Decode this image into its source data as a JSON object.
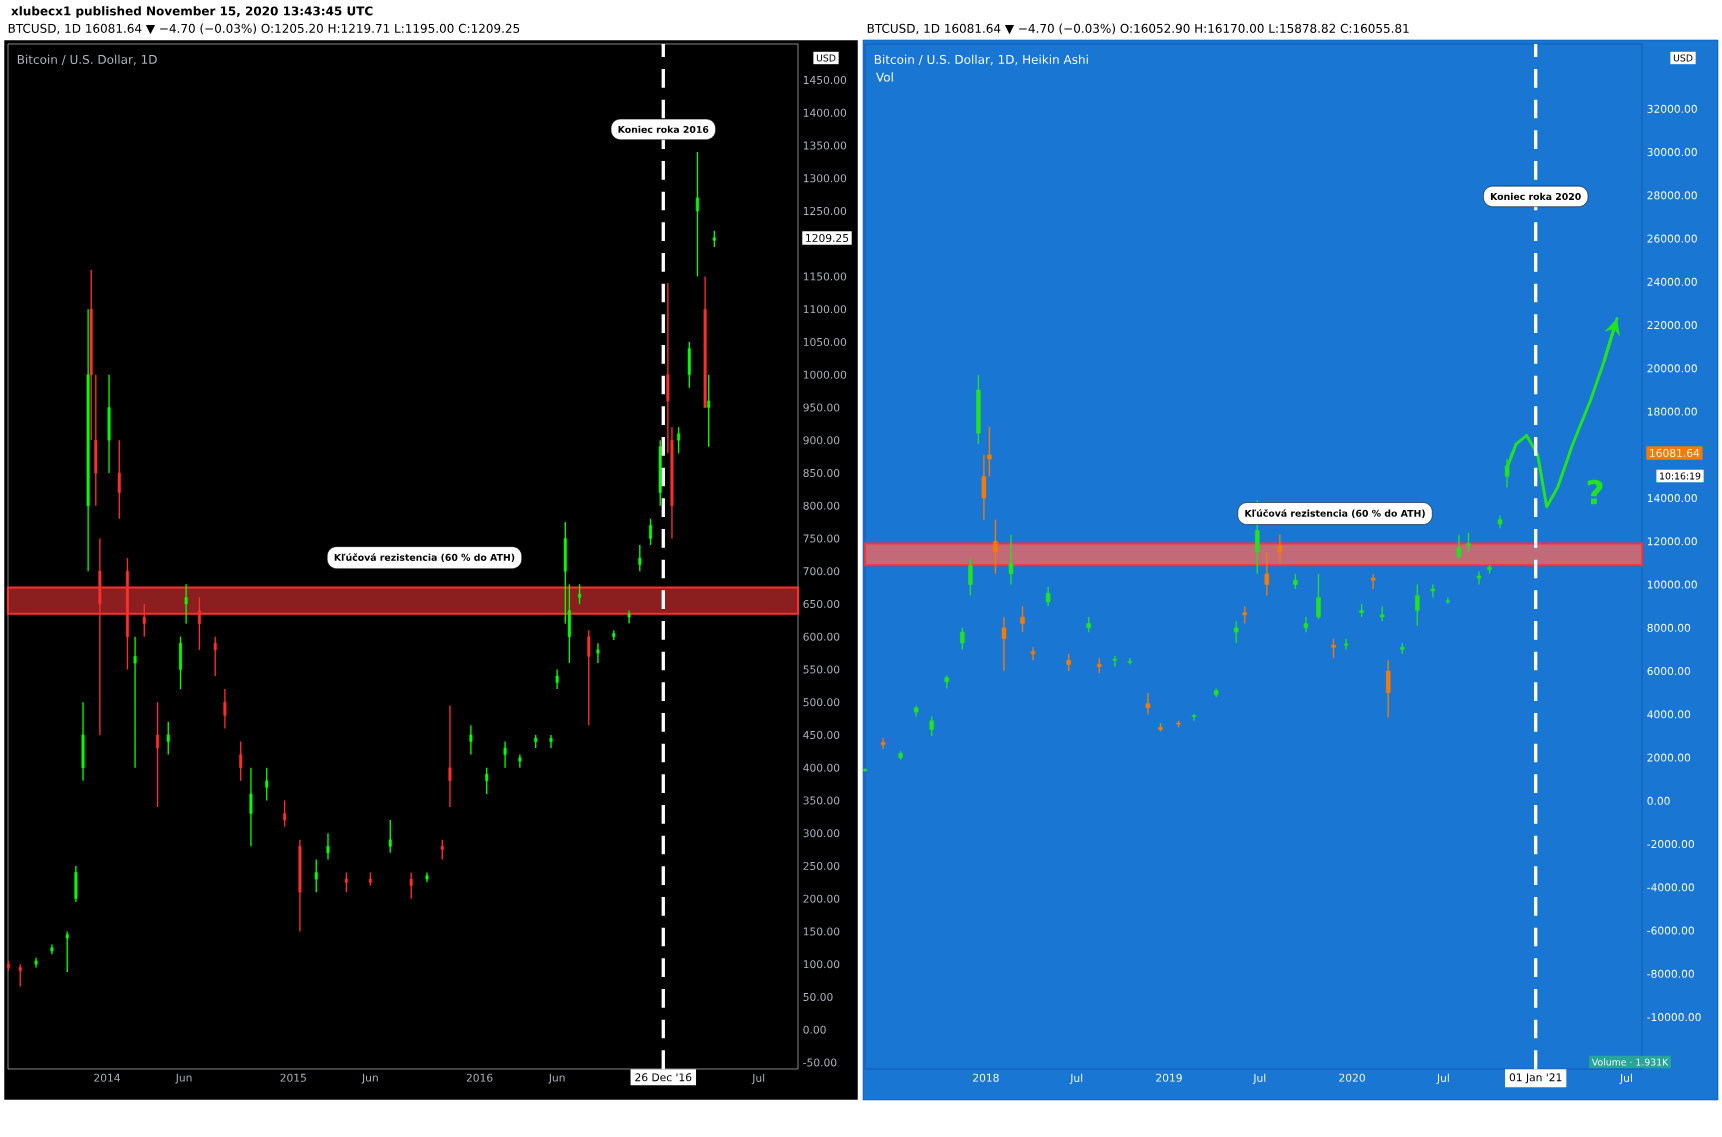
{
  "chart_data": [
    {
      "type": "candlestick",
      "title": "Bitcoin / U.S. Dollar, 1D",
      "subtitle": "BTCUSD, 1D  16081.64 ▼ −4.70 (−0.03%)  O:1205.20 H:1219.71 L:1195.00 C:1209.25",
      "xlim": [
        "2013-06-21",
        "2017-09-16"
      ],
      "ylim": [
        -60,
        1505
      ],
      "xticks": [
        {
          "value": "2014-01-01",
          "label": "2014"
        },
        {
          "value": "2014-06-01",
          "label": "Jun"
        },
        {
          "value": "2015-01-01",
          "label": "2015"
        },
        {
          "value": "2015-06-01",
          "label": "Jun"
        },
        {
          "value": "2016-01-01",
          "label": "2016"
        },
        {
          "value": "2016-06-01",
          "label": "Jun"
        },
        {
          "value": "2017-07-01",
          "label": "Jul"
        }
      ],
      "yticks": [
        {
          "value": -50,
          "label": "-50.00"
        },
        {
          "value": 0,
          "label": "0.00"
        },
        {
          "value": 50,
          "label": "50.00"
        },
        {
          "value": 100,
          "label": "100.00"
        },
        {
          "value": 150,
          "label": "150.00"
        },
        {
          "value": 200,
          "label": "200.00"
        },
        {
          "value": 250,
          "label": "250.00"
        },
        {
          "value": 300,
          "label": "300.00"
        },
        {
          "value": 350,
          "label": "350.00"
        },
        {
          "value": 400,
          "label": "400.00"
        },
        {
          "value": 450,
          "label": "450.00"
        },
        {
          "value": 500,
          "label": "500.00"
        },
        {
          "value": 550,
          "label": "550.00"
        },
        {
          "value": 600,
          "label": "600.00"
        },
        {
          "value": 650,
          "label": "650.00"
        },
        {
          "value": 700,
          "label": "700.00"
        },
        {
          "value": 750,
          "label": "750.00"
        },
        {
          "value": 800,
          "label": "800.00"
        },
        {
          "value": 850,
          "label": "850.00"
        },
        {
          "value": 900,
          "label": "900.00"
        },
        {
          "value": 950,
          "label": "950.00"
        },
        {
          "value": 1000,
          "label": "1000.00"
        },
        {
          "value": 1050,
          "label": "1050.00"
        },
        {
          "value": 1100,
          "label": "1100.00"
        },
        {
          "value": 1150,
          "label": "1150.00"
        },
        {
          "value": 1250,
          "label": "1250.00"
        },
        {
          "value": 1300,
          "label": "1300.00"
        },
        {
          "value": 1350,
          "label": "1350.00"
        },
        {
          "value": 1400,
          "label": "1400.00"
        },
        {
          "value": 1450,
          "label": "1450.00"
        }
      ],
      "series": [
        {
          "x": [
            "2013-06-22",
            "2013-07-15",
            "2013-08-15",
            "2013-09-15",
            "2013-10-15",
            "2013-11-01",
            "2013-11-15",
            "2013-11-25",
            "2013-12-01",
            "2013-12-10",
            "2013-12-18",
            "2014-01-05",
            "2014-01-25",
            "2014-02-10",
            "2014-02-25",
            "2014-03-15",
            "2014-04-10",
            "2014-05-01",
            "2014-05-25",
            "2014-06-05",
            "2014-07-01",
            "2014-08-01",
            "2014-08-20",
            "2014-09-20",
            "2014-10-10",
            "2014-11-10",
            "2014-12-15",
            "2015-01-14",
            "2015-02-15",
            "2015-03-10",
            "2015-04-15",
            "2015-06-01",
            "2015-07-10",
            "2015-08-20",
            "2015-09-20",
            "2015-10-20",
            "2015-11-04",
            "2015-12-15",
            "2016-01-15",
            "2016-02-20",
            "2016-03-20",
            "2016-04-20",
            "2016-05-20",
            "2016-06-01",
            "2016-06-17",
            "2016-06-25",
            "2016-07-15",
            "2016-08-02",
            "2016-08-20",
            "2016-09-20",
            "2016-10-20",
            "2016-11-10",
            "2016-12-01",
            "2016-12-20",
            "2017-01-04",
            "2017-01-12",
            "2017-01-25",
            "2017-02-15",
            "2017-03-03",
            "2017-03-18",
            "2017-03-25",
            "2017-04-05"
          ],
          "ohlc": [
            [
              100,
              105,
              90,
              95
            ],
            [
              95,
              100,
              66,
              90
            ],
            [
              100,
              110,
              95,
              105
            ],
            [
              120,
              130,
              115,
              125
            ],
            [
              140,
              150,
              88,
              145
            ],
            [
              200,
              250,
              195,
              240
            ],
            [
              400,
              500,
              380,
              450
            ],
            [
              800,
              1100,
              700,
              1000
            ],
            [
              1100,
              1160,
              900,
              1000
            ],
            [
              900,
              1000,
              800,
              850
            ],
            [
              700,
              750,
              450,
              650
            ],
            [
              900,
              1000,
              850,
              950
            ],
            [
              850,
              900,
              780,
              820
            ],
            [
              700,
              720,
              550,
              600
            ],
            [
              560,
              600,
              400,
              570
            ],
            [
              630,
              650,
              600,
              620
            ],
            [
              450,
              500,
              340,
              430
            ],
            [
              440,
              470,
              420,
              450
            ],
            [
              550,
              600,
              520,
              590
            ],
            [
              650,
              680,
              620,
              660
            ],
            [
              640,
              660,
              580,
              620
            ],
            [
              590,
              600,
              540,
              580
            ],
            [
              500,
              520,
              460,
              480
            ],
            [
              420,
              440,
              380,
              400
            ],
            [
              330,
              400,
              280,
              360
            ],
            [
              370,
              400,
              350,
              380
            ],
            [
              330,
              350,
              310,
              320
            ],
            [
              280,
              290,
              150,
              210
            ],
            [
              230,
              260,
              210,
              240
            ],
            [
              270,
              300,
              260,
              280
            ],
            [
              230,
              240,
              210,
              225
            ],
            [
              230,
              240,
              220,
              225
            ],
            [
              280,
              320,
              270,
              290
            ],
            [
              230,
              240,
              200,
              220
            ],
            [
              230,
              240,
              225,
              235
            ],
            [
              280,
              290,
              260,
              275
            ],
            [
              400,
              495,
              340,
              380
            ],
            [
              440,
              465,
              420,
              450
            ],
            [
              380,
              400,
              360,
              390
            ],
            [
              420,
              440,
              400,
              430
            ],
            [
              410,
              420,
              400,
              415
            ],
            [
              440,
              450,
              430,
              445
            ],
            [
              440,
              450,
              430,
              445
            ],
            [
              530,
              550,
              520,
              540
            ],
            [
              700,
              775,
              620,
              750
            ],
            [
              600,
              680,
              560,
              640
            ],
            [
              660,
              680,
              650,
              665
            ],
            [
              600,
              610,
              465,
              570
            ],
            [
              575,
              590,
              560,
              580
            ],
            [
              600,
              610,
              595,
              605
            ],
            [
              630,
              640,
              620,
              635
            ],
            [
              710,
              740,
              700,
              720
            ],
            [
              750,
              780,
              740,
              770
            ],
            [
              820,
              900,
              800,
              890
            ],
            [
              1000,
              1140,
              880,
              960
            ],
            [
              900,
              920,
              750,
              800
            ],
            [
              900,
              920,
              880,
              910
            ],
            [
              1000,
              1050,
              980,
              1040
            ],
            [
              1250,
              1340,
              1150,
              1270
            ],
            [
              1100,
              1150,
              950,
              950
            ],
            [
              950,
              1000,
              890,
              960
            ],
            [
              1205.2,
              1219.71,
              1195.0,
              1209.25
            ]
          ],
          "colors": [
            "#ff2f2f",
            "#ff2f2f",
            "#00ff00",
            "#00ff00",
            "#00ff00",
            "#00ff00",
            "#00ff00",
            "#00ff00",
            "#ff2f2f",
            "#ff2f2f",
            "#ff2f2f",
            "#00ff00",
            "#ff2f2f",
            "#ff2f2f",
            "#00ff00",
            "#ff2f2f",
            "#ff2f2f",
            "#00ff00",
            "#00ff00",
            "#00ff00",
            "#ff2f2f",
            "#ff2f2f",
            "#ff2f2f",
            "#ff2f2f",
            "#00ff00",
            "#00ff00",
            "#ff2f2f",
            "#ff2f2f",
            "#00ff00",
            "#00ff00",
            "#ff2f2f",
            "#ff2f2f",
            "#00ff00",
            "#ff2f2f",
            "#00ff00",
            "#ff2f2f",
            "#ff2f2f",
            "#00ff00",
            "#00ff00",
            "#00ff00",
            "#00ff00",
            "#00ff00",
            "#00ff00",
            "#00ff00",
            "#00ff00",
            "#00ff00",
            "#00ff00",
            "#ff2f2f",
            "#00ff00",
            "#00ff00",
            "#00ff00",
            "#00ff00",
            "#00ff00",
            "#00ff00",
            "#ff2f2f",
            "#ff2f2f",
            "#00ff00",
            "#00ff00",
            "#00ff00",
            "#ff2f2f",
            "#00ff00",
            "#00ff00"
          ]
        }
      ],
      "ref_lines": [
        {
          "axis": "x",
          "value": "2016-12-26",
          "label": "26 Dec '16",
          "color": "#ffffff",
          "line_style": "dashed"
        }
      ],
      "bands": [
        {
          "axis": "y",
          "from": 635,
          "to": 675,
          "color": "#8b1e1e"
        }
      ],
      "annotations": [
        "xlubecx1 published November 15, 2020 13:43:45 UTC",
        "USD",
        {
          "text": "Koniec roka 2016",
          "x": "2016-12-26",
          "y": 1330
        },
        {
          "text": "Kľúčová rezistencia (60 % do ATH)",
          "x": "2015-09-15",
          "y": 675
        },
        "1209.25"
      ]
    },
    {
      "type": "candlestick",
      "title": "Bitcoin / U.S. Dollar, 1D, Heikin Ashi",
      "subtitle": "BTCUSD, 1D  16081.64 ▼ −4.70 (−0.03%)  O:16052.90 H:16170.00 L:15878.82 C:16055.81",
      "xlim": [
        "2017-05-05",
        "2021-08-01"
      ],
      "ylim": [
        -12400,
        35000
      ],
      "xticks": [
        {
          "value": "2018-01-01",
          "label": "2018"
        },
        {
          "value": "2018-07-01",
          "label": "Jul"
        },
        {
          "value": "2019-01-01",
          "label": "2019"
        },
        {
          "value": "2019-07-01",
          "label": "Jul"
        },
        {
          "value": "2020-01-01",
          "label": "2020"
        },
        {
          "value": "2020-07-01",
          "label": "Jul"
        },
        {
          "value": "2021-07-01",
          "label": "Jul"
        }
      ],
      "yticks": [
        {
          "value": -10000,
          "label": "-10000.00"
        },
        {
          "value": -8000,
          "label": "-8000.00"
        },
        {
          "value": -6000,
          "label": "-6000.00"
        },
        {
          "value": -4000,
          "label": "-4000.00"
        },
        {
          "value": -2000,
          "label": "-2000.00"
        },
        {
          "value": 0,
          "label": "0.00"
        },
        {
          "value": 2000,
          "label": "2000.00"
        },
        {
          "value": 4000,
          "label": "4000.00"
        },
        {
          "value": 6000,
          "label": "6000.00"
        },
        {
          "value": 8000,
          "label": "8000.00"
        },
        {
          "value": 10000,
          "label": "10000.00"
        },
        {
          "value": 12000,
          "label": "12000.00"
        },
        {
          "value": 14000,
          "label": "14000.00"
        },
        {
          "value": 18000,
          "label": "18000.00"
        },
        {
          "value": 20000,
          "label": "20000.00"
        },
        {
          "value": 22000,
          "label": "22000.00"
        },
        {
          "value": 24000,
          "label": "24000.00"
        },
        {
          "value": 26000,
          "label": "26000.00"
        },
        {
          "value": 28000,
          "label": "28000.00"
        },
        {
          "value": 30000,
          "label": "30000.00"
        },
        {
          "value": 32000,
          "label": "32000.00"
        }
      ],
      "series": [
        {
          "x": [
            "2017-05-05",
            "2017-06-10",
            "2017-07-15",
            "2017-08-15",
            "2017-09-15",
            "2017-10-15",
            "2017-11-15",
            "2017-12-01",
            "2017-12-17",
            "2017-12-28",
            "2018-01-08",
            "2018-01-20",
            "2018-02-06",
            "2018-02-20",
            "2018-03-15",
            "2018-04-05",
            "2018-05-05",
            "2018-06-15",
            "2018-07-25",
            "2018-08-15",
            "2018-09-15",
            "2018-10-15",
            "2018-11-20",
            "2018-12-15",
            "2019-01-20",
            "2019-02-20",
            "2019-04-05",
            "2019-05-15",
            "2019-06-01",
            "2019-06-26",
            "2019-07-15",
            "2019-08-10",
            "2019-09-10",
            "2019-10-01",
            "2019-10-26",
            "2019-11-25",
            "2019-12-20",
            "2020-01-20",
            "2020-02-12",
            "2020-03-01",
            "2020-03-13",
            "2020-04-10",
            "2020-05-10",
            "2020-06-10",
            "2020-07-10",
            "2020-08-01",
            "2020-08-20",
            "2020-09-10",
            "2020-10-01",
            "2020-10-22",
            "2020-11-05",
            "2020-11-15"
          ],
          "ohlc": [
            [
              1400,
              1500,
              1350,
              1450
            ],
            [
              2700,
              2900,
              2400,
              2600
            ],
            [
              2000,
              2300,
              1900,
              2200
            ],
            [
              4100,
              4400,
              3900,
              4300
            ],
            [
              3300,
              3900,
              3000,
              3700
            ],
            [
              5500,
              5800,
              5200,
              5700
            ],
            [
              7300,
              8000,
              7000,
              7800
            ],
            [
              10000,
              11200,
              9500,
              10900
            ],
            [
              17000,
              19700,
              16500,
              19000
            ],
            [
              15000,
              16000,
              13000,
              14000
            ],
            [
              16000,
              17300,
              15000,
              15800
            ],
            [
              12000,
              13000,
              10500,
              11500
            ],
            [
              8000,
              8500,
              6000,
              7500
            ],
            [
              10500,
              12300,
              10000,
              11000
            ],
            [
              8500,
              9000,
              7800,
              8200
            ],
            [
              6900,
              7100,
              6500,
              6800
            ],
            [
              9200,
              9900,
              9000,
              9600
            ],
            [
              6500,
              6800,
              6000,
              6300
            ],
            [
              8000,
              8500,
              7800,
              8200
            ],
            [
              6300,
              6600,
              5900,
              6200
            ],
            [
              6500,
              6700,
              6200,
              6550
            ],
            [
              6400,
              6600,
              6300,
              6450
            ],
            [
              4500,
              5000,
              4000,
              4300
            ],
            [
              3400,
              3600,
              3200,
              3300
            ],
            [
              3600,
              3700,
              3400,
              3550
            ],
            [
              3900,
              4000,
              3700,
              3950
            ],
            [
              4900,
              5200,
              4800,
              5100
            ],
            [
              7800,
              8300,
              7300,
              8000
            ],
            [
              8700,
              9000,
              8200,
              8600
            ],
            [
              11500,
              13900,
              10500,
              12500
            ],
            [
              10500,
              11500,
              9500,
              10000
            ],
            [
              11800,
              12300,
              11000,
              11500
            ],
            [
              10000,
              10500,
              9800,
              10200
            ],
            [
              8000,
              8500,
              7800,
              8200
            ],
            [
              8500,
              10500,
              8400,
              9400
            ],
            [
              7200,
              7500,
              6600,
              7100
            ],
            [
              7200,
              7500,
              7000,
              7250
            ],
            [
              8700,
              9100,
              8500,
              8800
            ],
            [
              10300,
              10500,
              9800,
              10200
            ],
            [
              8500,
              9000,
              8300,
              8600
            ],
            [
              6000,
              6500,
              3850,
              5000
            ],
            [
              7000,
              7300,
              6800,
              7100
            ],
            [
              8800,
              10000,
              8100,
              9500
            ],
            [
              9700,
              10000,
              9400,
              9800
            ],
            [
              9200,
              9400,
              9100,
              9250
            ],
            [
              11300,
              12300,
              11200,
              11700
            ],
            [
              11800,
              12400,
              11500,
              11900
            ],
            [
              10300,
              10600,
              10000,
              10400
            ],
            [
              10700,
              10900,
              10500,
              10800
            ],
            [
              12800,
              13200,
              12600,
              13000
            ],
            [
              15000,
              15800,
              14500,
              15500
            ],
            [
              16052.9,
              16170.0,
              15878.82,
              16055.81
            ]
          ],
          "colors": [
            "#22e322",
            "#f57c00",
            "#22e322",
            "#22e322",
            "#22e322",
            "#22e322",
            "#22e322",
            "#22e322",
            "#22e322",
            "#f57c00",
            "#f57c00",
            "#f57c00",
            "#f57c00",
            "#22e322",
            "#f57c00",
            "#f57c00",
            "#22e322",
            "#f57c00",
            "#22e322",
            "#f57c00",
            "#22e322",
            "#22e322",
            "#f57c00",
            "#f57c00",
            "#f57c00",
            "#22e322",
            "#22e322",
            "#22e322",
            "#f57c00",
            "#22e322",
            "#f57c00",
            "#f57c00",
            "#22e322",
            "#22e322",
            "#22e322",
            "#f57c00",
            "#22e322",
            "#22e322",
            "#f57c00",
            "#22e322",
            "#f57c00",
            "#22e322",
            "#22e322",
            "#22e322",
            "#22e322",
            "#22e322",
            "#22e322",
            "#22e322",
            "#22e322",
            "#22e322",
            "#22e322",
            "#22e322"
          ]
        },
        {
          "type": "line",
          "color": "#22e322",
          "line_style": "solid",
          "x": [
            "2020-11-05",
            "2020-11-23",
            "2020-12-14",
            "2021-01-05",
            "2021-01-23",
            "2021-02-14",
            "2021-03-16",
            "2021-04-20",
            "2021-05-17",
            "2021-06-12"
          ],
          "values": [
            15400,
            16500,
            16900,
            16000,
            13600,
            14500,
            16500,
            18500,
            20300,
            22300
          ]
        }
      ],
      "ref_lines": [
        {
          "axis": "x",
          "value": "2021-01-01",
          "label": "01 Jan '21",
          "color": "#ffffff",
          "line_style": "dashed"
        }
      ],
      "bands": [
        {
          "axis": "y",
          "from": 10900,
          "to": 11900,
          "color": "#c26a78"
        }
      ],
      "annotations": [
        "Vol",
        "USD",
        "?",
        "10:16:19",
        "Volume · 1.931K",
        {
          "text": "Koniec roka 2020",
          "x": "2021-01-01",
          "y": 26600
        },
        {
          "text": "Kľúčová rezistencia (60 % do ATH)",
          "x": "2019-11-28",
          "y": 11900
        },
        "16081.64"
      ]
    }
  ]
}
